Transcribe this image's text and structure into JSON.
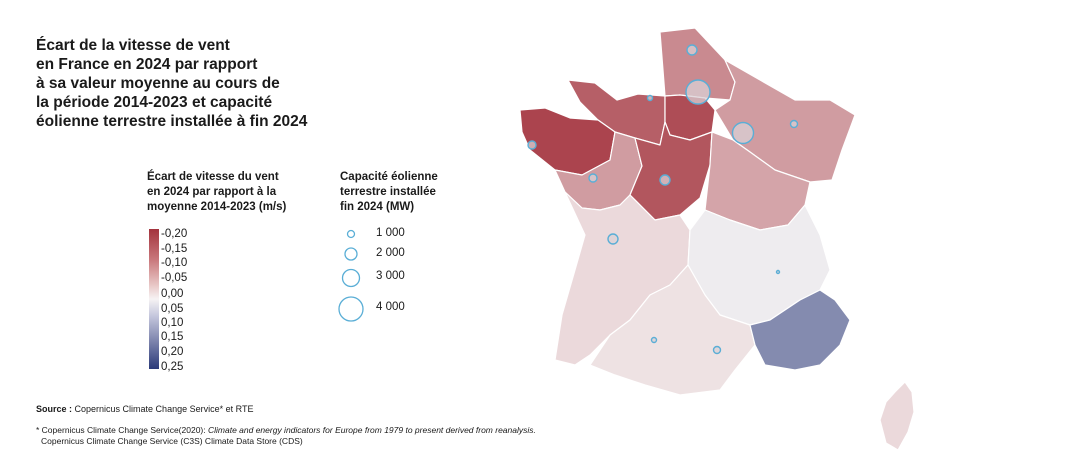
{
  "title": {
    "lines": [
      "Écart de la vitesse de vent",
      "en France en 2024 par rapport",
      "à sa valeur moyenne au cours de",
      "la période 2014-2023 et capacité",
      "éolienne terrestre installée à fin 2024"
    ]
  },
  "legend_color": {
    "title_lines": [
      "Écart de vitesse du vent",
      "en 2024 par rapport à la",
      "moyenne 2014-2023 (m/s)"
    ],
    "ticks": [
      "-0,20",
      "-0,15",
      "-0,10",
      "-0,05",
      "0,00",
      "0,05",
      "0,10",
      "0,15",
      "0,20",
      "0,25"
    ],
    "colors": {
      "negative": "#a3333d",
      "zero": "#f6f3f4",
      "positive": "#2b3a79"
    }
  },
  "legend_size": {
    "title_lines": [
      "Capacité éolienne",
      "terrestre installée",
      "fin 2024 (MW)"
    ],
    "items": [
      {
        "label": "1 000",
        "value": 1000
      },
      {
        "label": "2 000",
        "value": 2000
      },
      {
        "label": "3 000",
        "value": 3000
      },
      {
        "label": "4 000",
        "value": 4000
      }
    ],
    "bubble_color": "#5aaed6"
  },
  "source": {
    "label": "Source :",
    "text": "Copernicus Climate Change Service* et RTE"
  },
  "footnote": {
    "line1_prefix": "* Copernicus Climate Change Service(2020): ",
    "line1_italic": "Climate and energy indicators for Europe from 1979 to present derived from reanalysis.",
    "line2": "Copernicus Climate Change Service (C3S) Climate Data Store (CDS)"
  },
  "regions": [
    {
      "name": "Hauts-de-France",
      "deviation": -0.12,
      "capacity_mw": 6300
    },
    {
      "name": "Normandie",
      "deviation": -0.17,
      "capacity_mw": 950
    },
    {
      "name": "Bretagne",
      "deviation": -0.2,
      "capacity_mw": 1300
    },
    {
      "name": "Île-de-France",
      "deviation": -0.19,
      "capacity_mw": 100
    },
    {
      "name": "Grand Est",
      "deviation": -0.1,
      "capacity_mw": 4200
    },
    {
      "name": "Pays de la Loire",
      "deviation": -0.23,
      "capacity_mw": 1200
    },
    {
      "name": "Centre-Val de Loire",
      "deviation": -0.18,
      "capacity_mw": 1500
    },
    {
      "name": "Bourgogne-Franche-Comté",
      "deviation": -0.09,
      "capacity_mw": 1000
    },
    {
      "name": "Nouvelle-Aquitaine",
      "deviation": -0.03,
      "capacity_mw": 1700
    },
    {
      "name": "Auvergne-Rhône-Alpes",
      "deviation": 0.01,
      "capacity_mw": 700
    },
    {
      "name": "Occitanie",
      "deviation": -0.02,
      "capacity_mw": 1700
    },
    {
      "name": "Provence-Alpes-Côte d'Azur",
      "deviation": 0.14,
      "capacity_mw": 100
    },
    {
      "name": "Corse",
      "deviation": -0.03,
      "capacity_mw": 20
    }
  ]
}
